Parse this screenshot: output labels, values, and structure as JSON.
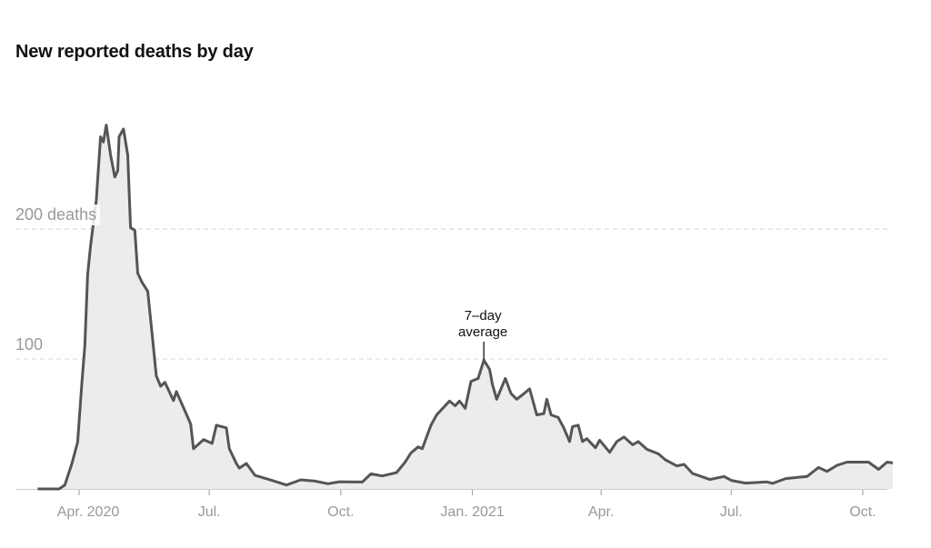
{
  "chart_data": {
    "type": "area",
    "title": "New reported deaths by day",
    "xlabel": "",
    "ylabel": "deaths",
    "x_unit": "days since 2020-04-01",
    "ylim": [
      0,
      290
    ],
    "xlim": [
      -29,
      570
    ],
    "grid": true,
    "y_ticks": [
      {
        "value": 100,
        "label": "100"
      },
      {
        "value": 200,
        "label": "200 deaths"
      }
    ],
    "x_ticks": [
      {
        "day": 0,
        "label": "Apr. 2020"
      },
      {
        "day": 91,
        "label": "Jul."
      },
      {
        "day": 183,
        "label": "Oct."
      },
      {
        "day": 275,
        "label": "Jan. 2021"
      },
      {
        "day": 365,
        "label": "Apr."
      },
      {
        "day": 456,
        "label": "Jul."
      },
      {
        "day": 548,
        "label": "Oct."
      }
    ],
    "annotation": {
      "line1": "7–day",
      "line2": "average",
      "day": 283,
      "value": 99
    },
    "series": [
      {
        "name": "7-day average",
        "points": [
          [
            -29,
            0
          ],
          [
            -14,
            0
          ],
          [
            -10,
            3
          ],
          [
            -5,
            19.6
          ],
          [
            -1,
            36
          ],
          [
            2,
            82
          ],
          [
            4,
            110
          ],
          [
            6,
            165
          ],
          [
            8,
            187
          ],
          [
            12,
            222
          ],
          [
            15,
            271
          ],
          [
            17,
            267
          ],
          [
            19,
            280
          ],
          [
            22,
            257
          ],
          [
            25,
            240
          ],
          [
            27,
            245
          ],
          [
            28,
            271
          ],
          [
            31,
            277
          ],
          [
            34,
            257
          ],
          [
            36,
            201
          ],
          [
            39,
            199
          ],
          [
            41,
            166
          ],
          [
            44,
            159
          ],
          [
            48,
            152
          ],
          [
            51,
            120
          ],
          [
            54,
            87
          ],
          [
            57,
            79
          ],
          [
            60,
            82
          ],
          [
            66,
            68
          ],
          [
            68,
            75
          ],
          [
            72,
            65
          ],
          [
            78,
            50
          ],
          [
            80,
            31
          ],
          [
            87,
            38
          ],
          [
            93,
            35
          ],
          [
            96,
            49
          ],
          [
            103,
            47
          ],
          [
            105,
            31
          ],
          [
            110,
            19.6
          ],
          [
            112,
            16
          ],
          [
            117,
            19.6
          ],
          [
            123,
            10.4
          ],
          [
            135,
            6.5
          ],
          [
            145,
            3
          ],
          [
            155,
            7
          ],
          [
            165,
            6
          ],
          [
            174,
            4
          ],
          [
            182,
            5.5
          ],
          [
            198,
            5.3
          ],
          [
            204,
            11.6
          ],
          [
            212,
            10
          ],
          [
            222,
            12.6
          ],
          [
            228,
            20.6
          ],
          [
            232,
            27.6
          ],
          [
            237,
            32.3
          ],
          [
            240,
            31
          ],
          [
            246,
            49
          ],
          [
            250,
            57
          ],
          [
            259,
            67.6
          ],
          [
            263,
            64
          ],
          [
            266,
            67.6
          ],
          [
            270,
            62
          ],
          [
            274,
            82.7
          ],
          [
            279,
            85
          ],
          [
            283,
            99
          ],
          [
            287,
            92
          ],
          [
            289,
            80.5
          ],
          [
            292,
            69
          ],
          [
            298,
            85
          ],
          [
            302,
            73.5
          ],
          [
            306,
            69
          ],
          [
            310,
            72.4
          ],
          [
            315,
            77
          ],
          [
            320,
            57
          ],
          [
            325,
            58
          ],
          [
            327,
            69
          ],
          [
            330,
            57
          ],
          [
            335,
            55
          ],
          [
            339,
            46.8
          ],
          [
            343,
            36.4
          ],
          [
            345,
            48
          ],
          [
            349,
            49
          ],
          [
            352,
            36.4
          ],
          [
            355,
            38.7
          ],
          [
            361,
            31.7
          ],
          [
            364,
            37.5
          ],
          [
            371,
            28.2
          ],
          [
            376,
            36.4
          ],
          [
            381,
            39.9
          ],
          [
            387,
            34
          ],
          [
            391,
            36.4
          ],
          [
            397,
            30.5
          ],
          [
            405,
            27
          ],
          [
            410,
            22.4
          ],
          [
            418,
            17.7
          ],
          [
            423,
            18.9
          ],
          [
            429,
            11.9
          ],
          [
            441,
            7.3
          ],
          [
            451,
            9.6
          ],
          [
            456,
            6.6
          ],
          [
            466,
            4.5
          ],
          [
            481,
            5.4
          ],
          [
            485,
            4.3
          ],
          [
            494,
            8
          ],
          [
            509,
            9.6
          ],
          [
            517,
            16.5
          ],
          [
            523,
            13.5
          ],
          [
            530,
            18.2
          ],
          [
            537,
            20.6
          ],
          [
            552,
            20.6
          ],
          [
            559,
            15
          ],
          [
            565,
            20.6
          ],
          [
            569,
            20
          ]
        ]
      }
    ],
    "colors": {
      "line": "#555555",
      "fill": "#ececec",
      "grid": "#d6d6d6",
      "label": "#999999"
    }
  }
}
